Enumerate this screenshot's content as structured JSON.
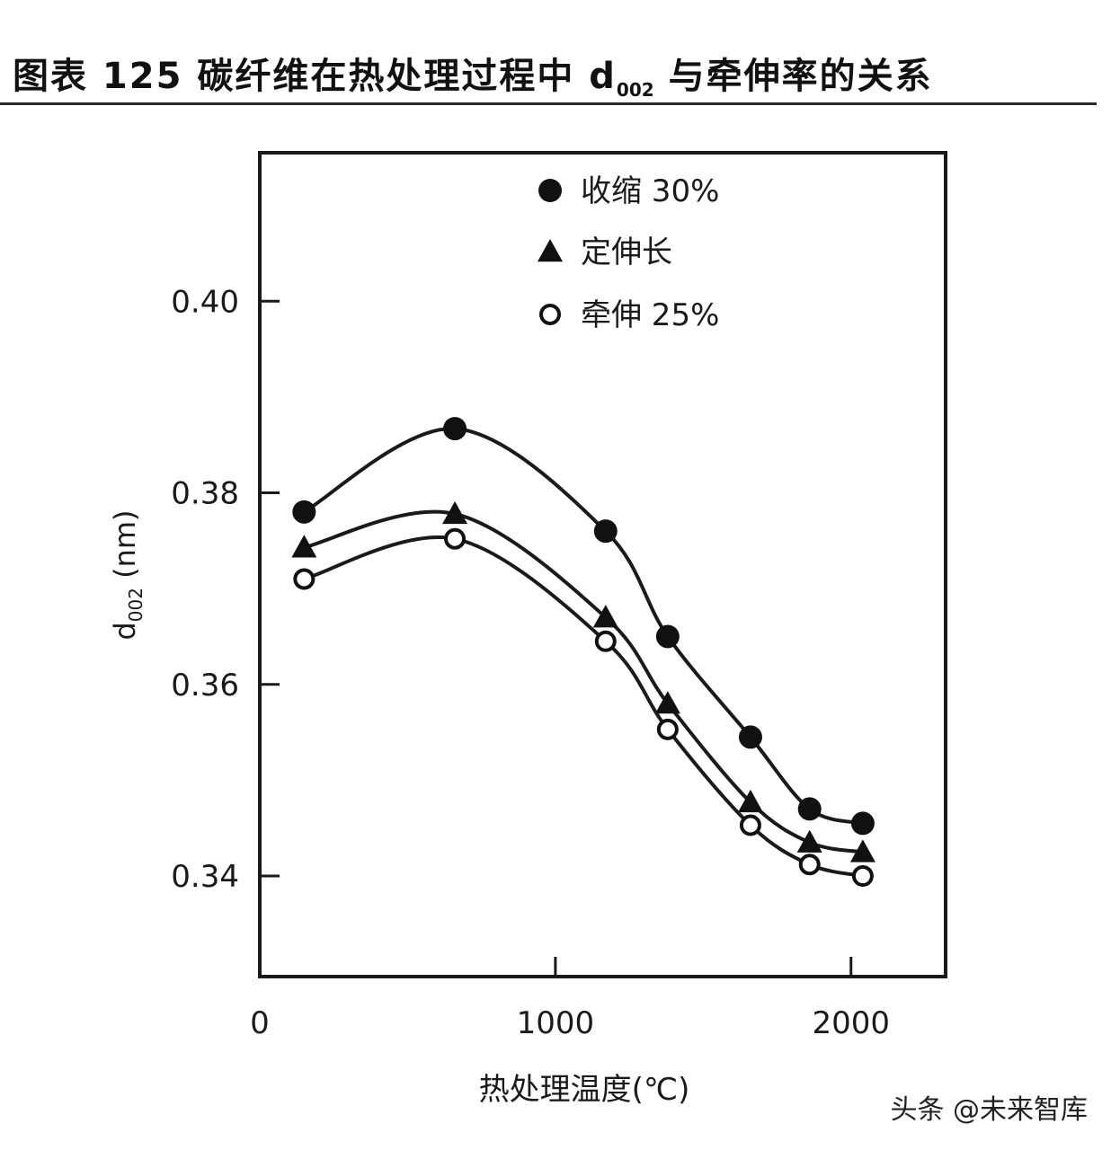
{
  "header": {
    "title_prefix": "图表 125  碳纤维在热处理过程中 d",
    "title_sub": "002",
    "title_suffix": " 与牵伸率的关系"
  },
  "watermark": "头条 @未来智库",
  "chart_data": {
    "type": "line",
    "xlabel": "热处理温度(℃)",
    "ylabel_main": "d",
    "ylabel_sub": "002",
    "ylabel_unit": " (nm)",
    "xlim": [
      0,
      2320
    ],
    "ylim": [
      0.3295,
      0.4155
    ],
    "x_ticks": [
      0,
      1000,
      2000
    ],
    "x_tick_labels": [
      "0",
      "1000",
      "2000"
    ],
    "y_ticks": [
      0.34,
      0.36,
      0.38,
      0.4
    ],
    "y_tick_labels": [
      "0.34",
      "0.36",
      "0.38",
      "0.40"
    ],
    "legend_position": "top-center",
    "grid": false,
    "series": [
      {
        "name": "收缩 30%",
        "marker": "filled-circle",
        "x": [
          150,
          660,
          1170,
          1380,
          1660,
          1860,
          2040
        ],
        "y": [
          0.378,
          0.3867,
          0.376,
          0.365,
          0.3545,
          0.347,
          0.3455
        ]
      },
      {
        "name": "定伸长",
        "marker": "filled-triangle",
        "x": [
          150,
          660,
          1170,
          1380,
          1660,
          1860,
          2040
        ],
        "y": [
          0.3743,
          0.3778,
          0.367,
          0.358,
          0.3477,
          0.3435,
          0.3425
        ]
      },
      {
        "name": "牵伸 25%",
        "marker": "open-circle",
        "x": [
          150,
          660,
          1170,
          1380,
          1660,
          1860,
          2040
        ],
        "y": [
          0.371,
          0.3752,
          0.3645,
          0.3553,
          0.3453,
          0.3412,
          0.34
        ]
      }
    ]
  }
}
